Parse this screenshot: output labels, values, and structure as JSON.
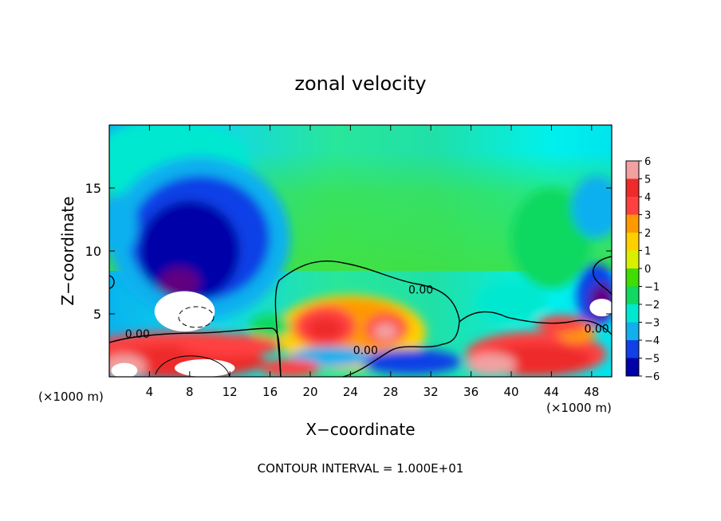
{
  "chart_data": {
    "type": "heatmap",
    "title": "zonal velocity",
    "xlabel": "X−coordinate",
    "ylabel": "Z−coordinate",
    "x_unit_left": "(×1000 m)",
    "x_unit_right": "(×1000 m)",
    "footer": "CONTOUR INTERVAL = 1.000E+01",
    "xlim": [
      0,
      50
    ],
    "ylim": [
      0,
      20
    ],
    "x_ticks": [
      4,
      8,
      12,
      16,
      20,
      24,
      28,
      32,
      36,
      40,
      44,
      48
    ],
    "x_tick_labels": [
      "4",
      "8",
      "12",
      "16",
      "20",
      "24",
      "28",
      "32",
      "36",
      "40",
      "44",
      "48"
    ],
    "y_ticks": [
      5,
      10,
      15
    ],
    "y_tick_labels": [
      "5",
      "10",
      "15"
    ],
    "colorbar": {
      "levels": [
        6,
        5,
        4,
        3,
        2,
        1,
        0,
        -1,
        -2,
        -3,
        -4,
        -5,
        -6
      ],
      "labels": [
        "6",
        "5",
        "4",
        "3",
        "2",
        "1",
        "0",
        "−1",
        "−2",
        "−3",
        "−4",
        "−5",
        "−6"
      ],
      "colors": [
        "#f2a0a0",
        "#ee2a2a",
        "#ff4040",
        "#ff9900",
        "#ffd000",
        "#d8f000",
        "#40dd00",
        "#10d860",
        "#00e8d0",
        "#10b0ee",
        "#1040e6",
        "#0000a8",
        "#600080"
      ]
    },
    "contour_labels": [
      {
        "text": "0.00",
        "x": 2.8,
        "z": 3.1
      },
      {
        "text": "0.00",
        "x": 25.5,
        "z": 1.8
      },
      {
        "text": "0.00",
        "x": 31.0,
        "z": 6.6
      },
      {
        "text": "0.00",
        "x": 48.5,
        "z": 3.5
      }
    ],
    "blobs": [
      {
        "x": 6,
        "z": 17,
        "rx": 8,
        "rz": 3.5,
        "level": -2
      },
      {
        "x": 9,
        "z": 11,
        "rx": 9,
        "rz": 6.5,
        "level": -3
      },
      {
        "x": 9,
        "z": 11,
        "rx": 7,
        "rz": 5,
        "level": -4
      },
      {
        "x": 8,
        "z": 10,
        "rx": 5,
        "rz": 4,
        "level": -5
      },
      {
        "x": 7,
        "z": 7.5,
        "rx": 2,
        "rz": 1.2,
        "level": -6
      },
      {
        "x": 0.8,
        "z": 12,
        "rx": 2,
        "rz": 2.5,
        "level": -3
      },
      {
        "x": 44,
        "z": 11,
        "rx": 4,
        "rz": 4,
        "level": -1
      },
      {
        "x": 48.5,
        "z": 13.5,
        "rx": 2.5,
        "rz": 2.5,
        "level": -3
      },
      {
        "x": 48.5,
        "z": 6.5,
        "rx": 2,
        "rz": 2.5,
        "level": -4
      },
      {
        "x": 49,
        "z": 6,
        "rx": 1.2,
        "rz": 1.4,
        "level": -6
      },
      {
        "x": 40,
        "z": 6,
        "rx": 3.5,
        "rz": 1.5,
        "level": -2
      },
      {
        "x": 24,
        "z": 3.5,
        "rx": 7.5,
        "rz": 3,
        "level": 2
      },
      {
        "x": 24,
        "z": 4,
        "rx": 6,
        "rz": 2.2,
        "level": 3
      },
      {
        "x": 21.5,
        "z": 4,
        "rx": 3,
        "rz": 1.6,
        "level": 4
      },
      {
        "x": 27.5,
        "z": 3.8,
        "rx": 2,
        "rz": 1.2,
        "level": 4
      },
      {
        "x": 21.5,
        "z": 3.8,
        "rx": 1.8,
        "rz": 0.9,
        "level": 5
      },
      {
        "x": 27.5,
        "z": 3.6,
        "rx": 1.2,
        "rz": 0.7,
        "level": 6
      },
      {
        "x": 16,
        "z": 4,
        "rx": 2,
        "rz": 1,
        "level": -1
      },
      {
        "x": 7,
        "z": 2.4,
        "rx": 9,
        "rz": 1.2,
        "level": 4
      },
      {
        "x": 7,
        "z": 1.2,
        "rx": 8.5,
        "rz": 1.3,
        "level": 5
      },
      {
        "x": 12,
        "z": 2.5,
        "rx": 5,
        "rz": 0.9,
        "level": 4
      },
      {
        "x": 1.5,
        "z": 0.8,
        "rx": 2.2,
        "rz": 1,
        "level": 6
      },
      {
        "x": 30,
        "z": 1.2,
        "rx": 5,
        "rz": 1,
        "level": -4
      },
      {
        "x": 22,
        "z": 1.6,
        "rx": 4,
        "rz": 0.8,
        "level": -3
      },
      {
        "x": 18,
        "z": 0.7,
        "rx": 3,
        "rz": 0.7,
        "level": 4
      },
      {
        "x": 42.5,
        "z": 1.8,
        "rx": 7,
        "rz": 1.8,
        "level": 4
      },
      {
        "x": 42.5,
        "z": 1.4,
        "rx": 5.5,
        "rz": 1.2,
        "level": 5
      },
      {
        "x": 46.5,
        "z": 3.6,
        "rx": 2,
        "rz": 0.9,
        "level": 3
      },
      {
        "x": 45,
        "z": 4.2,
        "rx": 2.5,
        "rz": 0.7,
        "level": 4
      },
      {
        "x": 38,
        "z": 1.0,
        "rx": 2.5,
        "rz": 0.9,
        "level": 6
      }
    ],
    "white_regions": [
      {
        "x": 7.5,
        "z": 5.2,
        "rx": 3,
        "rz": 1.6
      },
      {
        "x": 1.5,
        "z": 0.5,
        "rx": 1.3,
        "rz": 0.6
      },
      {
        "x": 9.5,
        "z": 0.7,
        "rx": 3,
        "rz": 0.7
      },
      {
        "x": 49,
        "z": 5.5,
        "rx": 1.2,
        "rz": 0.7
      }
    ]
  }
}
